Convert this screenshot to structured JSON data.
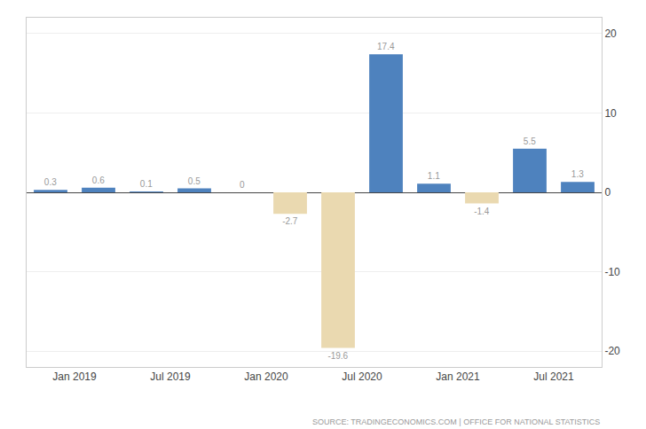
{
  "chart_data": {
    "type": "bar",
    "categories": [
      "Jan 2019",
      null,
      "Jul 2019",
      null,
      "Jan 2020",
      null,
      "Jul 2020",
      null,
      "Jan 2021",
      null,
      "Jul 2021",
      null
    ],
    "values": [
      0.3,
      0.6,
      0.1,
      0.5,
      0.0,
      -2.7,
      -19.6,
      17.4,
      1.1,
      -1.4,
      5.5,
      1.3
    ],
    "colors": [
      "#4e82be",
      "#4e82be",
      "#4e82be",
      "#4e82be",
      "#4e82be",
      "#ead9b0",
      "#ead9b0",
      "#4e82be",
      "#4e82be",
      "#ead9b0",
      "#4e82be",
      "#4e82be"
    ],
    "data_labels": true,
    "ylim": [
      -22,
      22
    ],
    "yticks": [
      -20,
      -10,
      0,
      10,
      20
    ],
    "grid": true,
    "annotations": [
      "SOURCE: TRADINGECONOMICS.COM | OFFICE FOR NATIONAL STATISTICS"
    ]
  }
}
